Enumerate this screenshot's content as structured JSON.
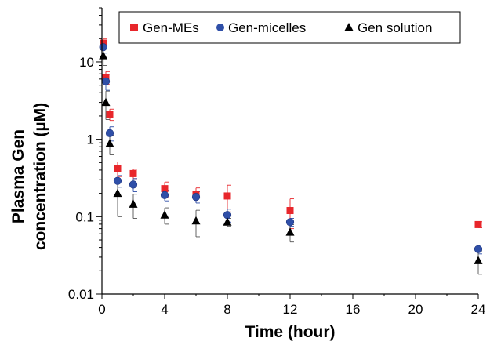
{
  "chart_data": {
    "type": "scatter",
    "xlabel": "Time (hour)",
    "ylabel_lines": [
      "Plasma Gen",
      "concentration (µM)"
    ],
    "xlim": [
      0,
      24
    ],
    "ylim": [
      0.01,
      50
    ],
    "y_scale": "log",
    "x_ticks": [
      0,
      4,
      8,
      12,
      16,
      20,
      24
    ],
    "y_ticks": [
      {
        "value": 0.01,
        "label": "0.01"
      },
      {
        "value": 0.1,
        "label": "0.1"
      },
      {
        "value": 1,
        "label": "1"
      },
      {
        "value": 10,
        "label": "10"
      }
    ],
    "grid": false,
    "legend_position": "top-right",
    "series": [
      {
        "name": "Gen-MEs",
        "marker": "square",
        "color": "#e8262b",
        "points": [
          {
            "x": 0.083,
            "y": 17.5,
            "err": 2.5
          },
          {
            "x": 0.25,
            "y": 6.3,
            "err": 1.2
          },
          {
            "x": 0.5,
            "y": 2.1,
            "err": 0.35
          },
          {
            "x": 1,
            "y": 0.42,
            "err": 0.09
          },
          {
            "x": 2,
            "y": 0.36,
            "err": 0.05
          },
          {
            "x": 4,
            "y": 0.23,
            "err": 0.05
          },
          {
            "x": 6,
            "y": 0.195,
            "err": 0.04
          },
          {
            "x": 8,
            "y": 0.185,
            "err": 0.07
          },
          {
            "x": 12,
            "y": 0.12,
            "err": 0.05
          },
          {
            "x": 24,
            "y": 0.079,
            "err": 0.007
          }
        ]
      },
      {
        "name": "Gen-micelles",
        "marker": "circle",
        "color": "#2f4fa8",
        "points": [
          {
            "x": 0.083,
            "y": 15.5,
            "err": 2.5
          },
          {
            "x": 0.25,
            "y": 5.6,
            "err": 1.3
          },
          {
            "x": 0.5,
            "y": 1.2,
            "err": 0.25
          },
          {
            "x": 1,
            "y": 0.29,
            "err": 0.05
          },
          {
            "x": 2,
            "y": 0.26,
            "err": 0.05
          },
          {
            "x": 4,
            "y": 0.19,
            "err": 0.03
          },
          {
            "x": 6,
            "y": 0.18,
            "err": 0.03
          },
          {
            "x": 8,
            "y": 0.105,
            "err": 0.02
          },
          {
            "x": 12,
            "y": 0.085,
            "err": 0.01
          },
          {
            "x": 24,
            "y": 0.038,
            "err": 0.005
          }
        ]
      },
      {
        "name": "Gen solution",
        "marker": "triangle",
        "color": "#000000",
        "points": [
          {
            "x": 0.083,
            "y": 12.0,
            "err": 3.0
          },
          {
            "x": 0.25,
            "y": 3.0,
            "err": 1.2
          },
          {
            "x": 0.5,
            "y": 0.88,
            "err": 0.25
          },
          {
            "x": 1,
            "y": 0.2,
            "err": 0.1
          },
          {
            "x": 2,
            "y": 0.145,
            "err": 0.05
          },
          {
            "x": 4,
            "y": 0.105,
            "err": 0.025
          },
          {
            "x": 6,
            "y": 0.088,
            "err": 0.033
          },
          {
            "x": 8,
            "y": 0.085,
            "err": 0.01
          },
          {
            "x": 12,
            "y": 0.063,
            "err": 0.016
          },
          {
            "x": 24,
            "y": 0.027,
            "err": 0.009
          }
        ]
      }
    ]
  }
}
